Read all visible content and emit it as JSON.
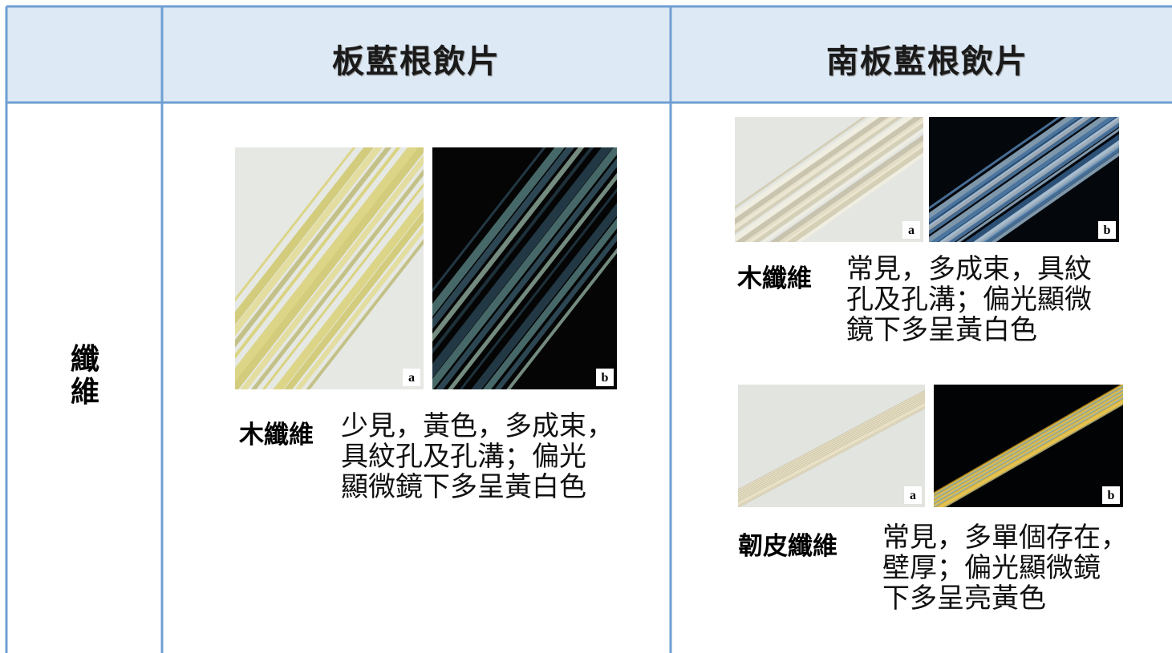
{
  "header": {
    "col1": "板藍根飲片",
    "col2": "南板藍根飲片"
  },
  "row": {
    "label": "纖維",
    "left": {
      "images": [
        "a",
        "b"
      ],
      "term": "木纖維",
      "lines": [
        "少見，黃色，多成束，",
        "具紋孔及孔溝；偏光",
        "顯微鏡下多呈黃白色"
      ]
    },
    "right": {
      "groups": [
        {
          "images": [
            "a",
            "b"
          ],
          "term": "木纖維",
          "lines": [
            "常見，多成束，具紋",
            "孔及孔溝；偏光顯微",
            "鏡下多呈黃白色"
          ]
        },
        {
          "images": [
            "a",
            "b"
          ],
          "term": "韌皮纖維",
          "lines": [
            "常見，多單個存在，",
            "壁厚；偏光顯微鏡",
            "下多呈亮黃色"
          ]
        }
      ]
    }
  }
}
